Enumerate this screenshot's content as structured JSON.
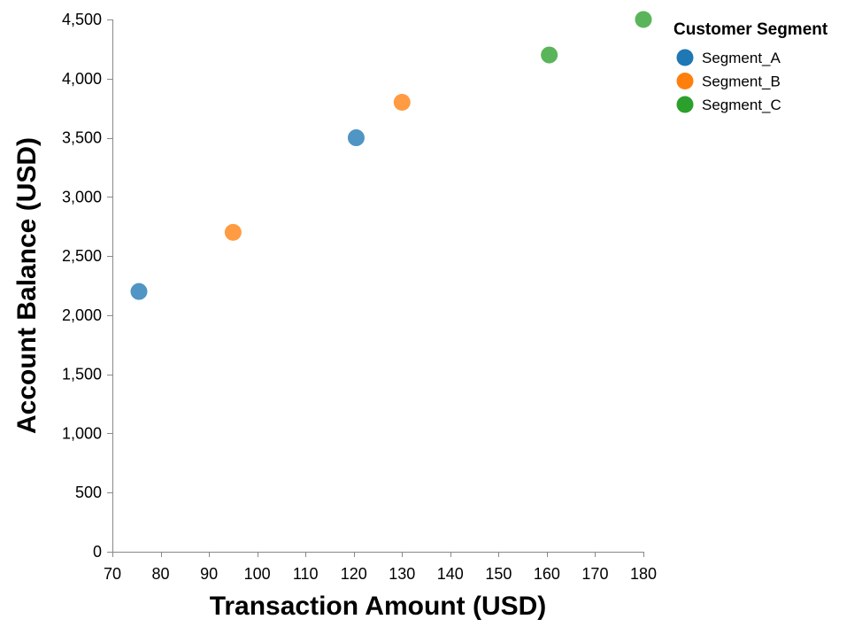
{
  "chart_data": {
    "type": "scatter",
    "title": "",
    "xlabel": "Transaction Amount (USD)",
    "ylabel": "Account Balance (USD)",
    "xlim": [
      70,
      180
    ],
    "ylim": [
      0,
      4500
    ],
    "x_ticks": [
      70,
      80,
      90,
      100,
      110,
      120,
      130,
      140,
      150,
      160,
      170,
      180
    ],
    "y_ticks": [
      0,
      500,
      1000,
      1500,
      2000,
      2500,
      3000,
      3500,
      4000,
      4500
    ],
    "grid": false,
    "legend": {
      "title": "Customer Segment",
      "placement": "top-right"
    },
    "series": [
      {
        "name": "Segment_A",
        "color": "#1f77b4",
        "points": [
          {
            "x": 75.5,
            "y": 2200
          },
          {
            "x": 120.5,
            "y": 3500
          }
        ]
      },
      {
        "name": "Segment_B",
        "color": "#ff7f0e",
        "points": [
          {
            "x": 95,
            "y": 2700
          },
          {
            "x": 130,
            "y": 3800
          }
        ]
      },
      {
        "name": "Segment_C",
        "color": "#2ca02c",
        "points": [
          {
            "x": 160.5,
            "y": 4200
          },
          {
            "x": 180,
            "y": 4500
          }
        ]
      }
    ]
  }
}
